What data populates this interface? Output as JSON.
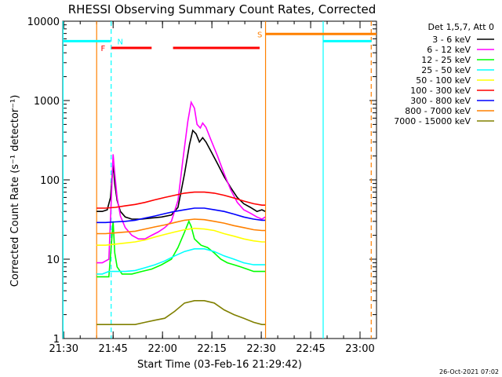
{
  "chart_data": {
    "type": "line",
    "title": "RHESSI Observing Summary Count Rates, Corrected",
    "xlabel": "Start Time (03-Feb-16 21:29:42)",
    "ylabel": "Corrected Count Rate (s⁻¹ detector⁻¹)",
    "footer": "26-Oct-2021 07:02",
    "y_scale": "log",
    "ylim": [
      1,
      10000
    ],
    "xlim_minutes": [
      0,
      95.3
    ],
    "x_tick_labels": [
      {
        "label": "21:30",
        "m": 0.3
      },
      {
        "label": "21:45",
        "m": 15.3
      },
      {
        "label": "22:00",
        "m": 30.3
      },
      {
        "label": "22:15",
        "m": 45.3
      },
      {
        "label": "22:30",
        "m": 60.3
      },
      {
        "label": "22:45",
        "m": 75.3
      },
      {
        "label": "23:00",
        "m": 90.3
      }
    ],
    "y_tick_labels": [
      {
        "label": "1",
        "v": 1
      },
      {
        "label": "10",
        "v": 10
      },
      {
        "label": "100",
        "v": 100
      },
      {
        "label": "1000",
        "v": 1000
      },
      {
        "label": "10000",
        "v": 10000
      }
    ],
    "legend_header": "Det 1,5,7, Att 0",
    "legend_placement": "right",
    "series": [
      {
        "name": "3 - 6 keV",
        "color": "#000000",
        "points": [
          [
            10.3,
            40
          ],
          [
            12,
            40
          ],
          [
            13.5,
            42
          ],
          [
            14.5,
            60
          ],
          [
            15.3,
            160
          ],
          [
            15.8,
            90
          ],
          [
            16.5,
            55
          ],
          [
            17.5,
            40
          ],
          [
            19,
            34
          ],
          [
            21,
            32
          ],
          [
            24,
            32
          ],
          [
            27,
            33
          ],
          [
            30,
            34
          ],
          [
            33,
            36
          ],
          [
            35,
            45
          ],
          [
            37,
            120
          ],
          [
            38.5,
            280
          ],
          [
            39.5,
            420
          ],
          [
            40.5,
            380
          ],
          [
            41.5,
            300
          ],
          [
            42.5,
            340
          ],
          [
            43.5,
            300
          ],
          [
            45,
            230
          ],
          [
            47,
            160
          ],
          [
            49,
            110
          ],
          [
            51,
            80
          ],
          [
            53,
            60
          ],
          [
            55,
            50
          ],
          [
            57,
            45
          ],
          [
            59,
            40
          ],
          [
            60.5,
            42
          ],
          [
            61.5,
            40
          ]
        ]
      },
      {
        "name": "6 - 12 keV",
        "color": "#ff00ff",
        "points": [
          [
            10.3,
            9
          ],
          [
            12,
            9
          ],
          [
            14,
            10
          ],
          [
            15.3,
            210
          ],
          [
            15.8,
            120
          ],
          [
            16.5,
            60
          ],
          [
            17.5,
            35
          ],
          [
            19,
            25
          ],
          [
            21,
            20
          ],
          [
            23,
            18
          ],
          [
            25,
            18
          ],
          [
            27,
            20
          ],
          [
            29,
            22
          ],
          [
            31,
            25
          ],
          [
            33,
            30
          ],
          [
            35,
            55
          ],
          [
            36.5,
            180
          ],
          [
            38,
            550
          ],
          [
            39,
            950
          ],
          [
            40,
            800
          ],
          [
            40.8,
            500
          ],
          [
            41.8,
            450
          ],
          [
            42.5,
            520
          ],
          [
            43.5,
            460
          ],
          [
            45,
            320
          ],
          [
            47,
            200
          ],
          [
            49,
            120
          ],
          [
            51,
            75
          ],
          [
            53,
            52
          ],
          [
            55,
            42
          ],
          [
            57,
            38
          ],
          [
            59,
            34
          ],
          [
            60.5,
            32
          ],
          [
            61.5,
            34
          ]
        ]
      },
      {
        "name": "12 - 25 keV",
        "color": "#00ff00",
        "points": [
          [
            10.3,
            6
          ],
          [
            12,
            6
          ],
          [
            14,
            6
          ],
          [
            15.3,
            30
          ],
          [
            15.8,
            12
          ],
          [
            16.5,
            8
          ],
          [
            18,
            6.5
          ],
          [
            21,
            6.5
          ],
          [
            24,
            7
          ],
          [
            27,
            7.5
          ],
          [
            30,
            8.5
          ],
          [
            33,
            10
          ],
          [
            35,
            14
          ],
          [
            37,
            22
          ],
          [
            38.3,
            30
          ],
          [
            39,
            26
          ],
          [
            40,
            18
          ],
          [
            42,
            15
          ],
          [
            44,
            14
          ],
          [
            46,
            12
          ],
          [
            48,
            10
          ],
          [
            50,
            9
          ],
          [
            52,
            8.5
          ],
          [
            54,
            8
          ],
          [
            56,
            7.5
          ],
          [
            58,
            7
          ],
          [
            60.5,
            7
          ],
          [
            61.5,
            7
          ]
        ]
      },
      {
        "name": "25 - 50 keV",
        "color": "#00ffff",
        "points": [
          [
            10.3,
            6.5
          ],
          [
            12,
            6.5
          ],
          [
            14,
            7
          ],
          [
            16,
            7
          ],
          [
            19,
            7
          ],
          [
            22,
            7.2
          ],
          [
            25,
            7.8
          ],
          [
            28,
            8.5
          ],
          [
            31,
            9.5
          ],
          [
            34,
            11
          ],
          [
            37,
            12.5
          ],
          [
            40,
            13.5
          ],
          [
            43,
            13.5
          ],
          [
            46,
            12.5
          ],
          [
            49,
            11
          ],
          [
            52,
            10
          ],
          [
            55,
            9
          ],
          [
            58,
            8.5
          ],
          [
            60.5,
            8.5
          ],
          [
            61.5,
            8.5
          ]
        ]
      },
      {
        "name": "50 - 100 keV",
        "color": "#ffff00",
        "points": [
          [
            10.3,
            15
          ],
          [
            13,
            15
          ],
          [
            16,
            15.5
          ],
          [
            19,
            16
          ],
          [
            22,
            16.5
          ],
          [
            25,
            17.5
          ],
          [
            28,
            19
          ],
          [
            31,
            20.5
          ],
          [
            34,
            22
          ],
          [
            37,
            23.5
          ],
          [
            40,
            24.5
          ],
          [
            43,
            24
          ],
          [
            46,
            23
          ],
          [
            49,
            21
          ],
          [
            52,
            19.5
          ],
          [
            55,
            18
          ],
          [
            58,
            17
          ],
          [
            60.5,
            16.5
          ],
          [
            61.5,
            16.5
          ]
        ]
      },
      {
        "name": "100 - 300 keV",
        "color": "#ff0000",
        "points": [
          [
            10.3,
            44
          ],
          [
            13,
            44
          ],
          [
            16,
            45
          ],
          [
            19,
            47
          ],
          [
            22,
            49
          ],
          [
            25,
            52
          ],
          [
            28,
            56
          ],
          [
            31,
            60
          ],
          [
            34,
            64
          ],
          [
            37,
            68
          ],
          [
            40,
            70
          ],
          [
            43,
            70
          ],
          [
            46,
            68
          ],
          [
            49,
            64
          ],
          [
            52,
            59
          ],
          [
            55,
            54
          ],
          [
            58,
            50
          ],
          [
            60.5,
            48
          ],
          [
            61.5,
            48
          ]
        ]
      },
      {
        "name": "300 - 800 keV",
        "color": "#0000ff",
        "points": [
          [
            10.3,
            29
          ],
          [
            13,
            29
          ],
          [
            16,
            29.5
          ],
          [
            19,
            30
          ],
          [
            22,
            31
          ],
          [
            25,
            33
          ],
          [
            28,
            35
          ],
          [
            31,
            37.5
          ],
          [
            34,
            40
          ],
          [
            37,
            42
          ],
          [
            40,
            44
          ],
          [
            43,
            44
          ],
          [
            46,
            42
          ],
          [
            49,
            40
          ],
          [
            52,
            37
          ],
          [
            55,
            34
          ],
          [
            58,
            32
          ],
          [
            60.5,
            31
          ],
          [
            61.5,
            31
          ]
        ]
      },
      {
        "name": "800 - 7000 keV",
        "color": "#ff8000",
        "points": [
          [
            10.3,
            21
          ],
          [
            13,
            21
          ],
          [
            16,
            21.5
          ],
          [
            19,
            22
          ],
          [
            22,
            22.5
          ],
          [
            25,
            24
          ],
          [
            28,
            25.5
          ],
          [
            31,
            27
          ],
          [
            34,
            29
          ],
          [
            37,
            31
          ],
          [
            40,
            32
          ],
          [
            43,
            31.5
          ],
          [
            46,
            30
          ],
          [
            49,
            28.5
          ],
          [
            52,
            26.5
          ],
          [
            55,
            25
          ],
          [
            58,
            23.5
          ],
          [
            60.5,
            23
          ],
          [
            61.5,
            23
          ]
        ]
      },
      {
        "name": "7000 - 15000 keV",
        "color": "#808000",
        "points": [
          [
            10.3,
            1.5
          ],
          [
            13,
            1.5
          ],
          [
            16,
            1.5
          ],
          [
            19,
            1.5
          ],
          [
            22,
            1.5
          ],
          [
            25,
            1.6
          ],
          [
            28,
            1.7
          ],
          [
            31,
            1.8
          ],
          [
            34,
            2.2
          ],
          [
            37,
            2.8
          ],
          [
            40,
            3
          ],
          [
            43,
            3
          ],
          [
            46,
            2.8
          ],
          [
            49,
            2.3
          ],
          [
            52,
            2
          ],
          [
            55,
            1.8
          ],
          [
            58,
            1.6
          ],
          [
            60.5,
            1.5
          ],
          [
            61.5,
            1.5
          ]
        ]
      }
    ],
    "annotations": [
      {
        "text": "N",
        "color": "#00ffff",
        "m": 15.6
      },
      {
        "text": "F",
        "color": "#ff0000",
        "m": 12.5
      },
      {
        "text": "S",
        "color": "#ff8000",
        "m": 61.0
      }
    ],
    "state_bars": [
      {
        "color": "#00ffff",
        "from": 0,
        "to": 14.5,
        "v": 5600
      },
      {
        "color": "#00ffff",
        "from": 79.0,
        "to": 93.8,
        "v": 5600
      },
      {
        "color": "#ff0000",
        "from": 14.8,
        "to": 27.0,
        "v": 4600
      },
      {
        "color": "#ff0000",
        "from": 33.5,
        "to": 59.8,
        "v": 4600
      },
      {
        "color": "#ff8000",
        "from": 61.7,
        "to": 95.3,
        "v": 6900
      }
    ],
    "vertical_lines": [
      {
        "color": "#00ffff",
        "style": "solid",
        "m": 0.1
      },
      {
        "color": "#00ffff",
        "style": "dashed",
        "m": 14.7
      },
      {
        "color": "#00ffff",
        "style": "solid",
        "m": 79.1
      },
      {
        "color": "#ff8000",
        "style": "solid",
        "m": 10.3
      },
      {
        "color": "#ff8000",
        "style": "solid",
        "m": 61.6
      },
      {
        "color": "#ff8000",
        "style": "dashed",
        "m": 93.7
      }
    ]
  }
}
